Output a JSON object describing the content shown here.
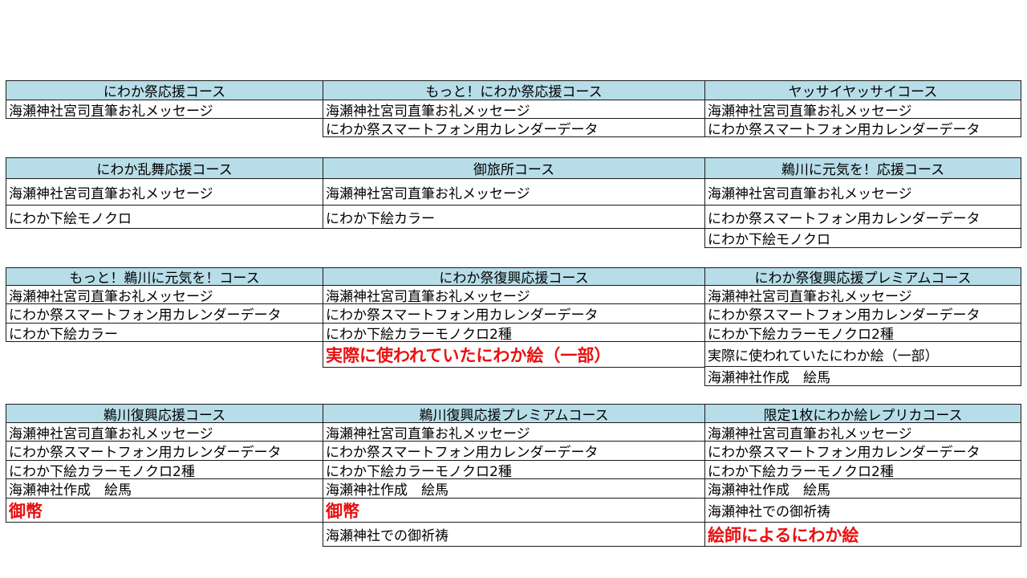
{
  "groups": [
    {
      "columns": [
        {
          "header": "にわか祭応援コース",
          "items": [
            {
              "text": "海瀬神社宮司直筆お礼メッセージ"
            }
          ]
        },
        {
          "header": "もっと！にわか祭応援コース",
          "items": [
            {
              "text": "海瀬神社宮司直筆お礼メッセージ"
            },
            {
              "text": "にわか祭スマートフォン用カレンダーデータ"
            }
          ]
        },
        {
          "header": "ヤッサイヤッサイコース",
          "items": [
            {
              "text": "海瀬神社宮司直筆お礼メッセージ"
            },
            {
              "text": "にわか祭スマートフォン用カレンダーデータ"
            }
          ]
        }
      ]
    },
    {
      "columns": [
        {
          "header": "にわか乱舞応援コース",
          "items": [
            {
              "text": "海瀬神社宮司直筆お礼メッセージ"
            },
            {
              "text": "にわか下絵モノクロ"
            }
          ]
        },
        {
          "header": "御旅所コース",
          "items": [
            {
              "text": "海瀬神社宮司直筆お礼メッセージ"
            },
            {
              "text": "にわか下絵カラー"
            }
          ]
        },
        {
          "header": "鵜川に元気を！応援コース",
          "items": [
            {
              "text": "海瀬神社宮司直筆お礼メッセージ"
            },
            {
              "text": "にわか祭スマートフォン用カレンダーデータ"
            },
            {
              "text": "にわか下絵モノクロ"
            }
          ]
        }
      ]
    },
    {
      "columns": [
        {
          "header": "もっと！鵜川に元気を！コース",
          "items": [
            {
              "text": "海瀬神社宮司直筆お礼メッセージ"
            },
            {
              "text": "にわか祭スマートフォン用カレンダーデータ"
            },
            {
              "text": "にわか下絵カラー"
            }
          ]
        },
        {
          "header": "にわか祭復興応援コース",
          "items": [
            {
              "text": "海瀬神社宮司直筆お礼メッセージ"
            },
            {
              "text": "にわか祭スマートフォン用カレンダーデータ"
            },
            {
              "text": "にわか下絵カラーモノクロ2種"
            },
            {
              "text": "実際に使われていたにわか絵（一部）",
              "highlight": true
            }
          ]
        },
        {
          "header": "にわか祭復興応援プレミアムコース",
          "items": [
            {
              "text": "海瀬神社宮司直筆お礼メッセージ"
            },
            {
              "text": "にわか祭スマートフォン用カレンダーデータ"
            },
            {
              "text": "にわか下絵カラーモノクロ2種"
            },
            {
              "text": "実際に使われていたにわか絵（一部）"
            },
            {
              "text": "海瀬神社作成　絵馬"
            }
          ]
        }
      ]
    },
    {
      "columns": [
        {
          "header": "鵜川復興応援コース",
          "items": [
            {
              "text": "海瀬神社宮司直筆お礼メッセージ"
            },
            {
              "text": "にわか祭スマートフォン用カレンダーデータ"
            },
            {
              "text": "にわか下絵カラーモノクロ2種"
            },
            {
              "text": "海瀬神社作成　絵馬"
            },
            {
              "text": "御幣",
              "highlight": true
            }
          ]
        },
        {
          "header": "鵜川復興応援プレミアムコース",
          "items": [
            {
              "text": "海瀬神社宮司直筆お礼メッセージ"
            },
            {
              "text": "にわか祭スマートフォン用カレンダーデータ"
            },
            {
              "text": "にわか下絵カラーモノクロ2種"
            },
            {
              "text": "海瀬神社作成　絵馬"
            },
            {
              "text": "御幣",
              "highlight": true
            },
            {
              "text": "海瀬神社での御祈祷"
            }
          ]
        },
        {
          "header": "限定1枚にわか絵レプリカコース",
          "items": [
            {
              "text": "海瀬神社宮司直筆お礼メッセージ"
            },
            {
              "text": "にわか祭スマートフォン用カレンダーデータ"
            },
            {
              "text": "にわか下絵カラーモノクロ2種"
            },
            {
              "text": "海瀬神社作成　絵馬"
            },
            {
              "text": "海瀬神社での御祈祷"
            },
            {
              "text": "絵師によるにわか絵",
              "highlight": true
            }
          ]
        }
      ]
    }
  ],
  "colors": {
    "header_bg": "#b7dde8",
    "highlight_text": "#e8100f"
  }
}
